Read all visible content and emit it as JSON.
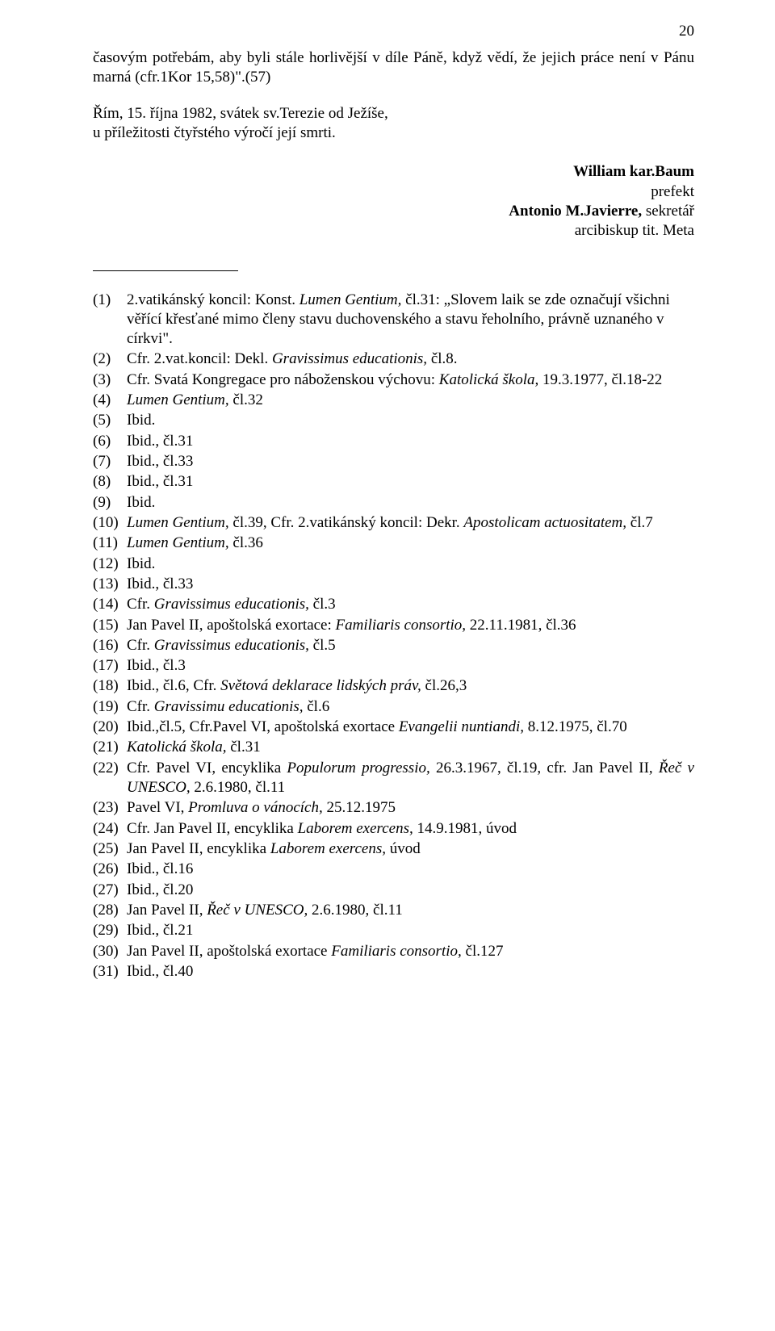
{
  "page_number": "20",
  "body": {
    "para1_a": "časovým potřebám, aby byli stále horlivější v díle Páně, když vědí, že jejich práce není v Pánu marná (cfr.1Kor 15,58)\".(57)",
    "para2_a": "Řím, 15. října 1982, svátek sv.Terezie od Ježíše,",
    "para2_b": "u příležitosti čtyřstého výročí její smrti."
  },
  "signatures": {
    "line1_name": "William kar.Baum",
    "line1_role": "prefekt",
    "line2_name": "Antonio M.Javierre,",
    "line2_role": " sekretář",
    "line3": "arcibiskup tit. Meta"
  },
  "notes": [
    {
      "n": "(1)",
      "pre": "2.vatikánský koncil: Konst. ",
      "it": "Lumen Gentium, ",
      "post": "čl.31: „Slovem laik se zde označují všichni věřící křesťané mimo členy stavu duchovenského a stavu řeholního, právně uznaného v církvi\"."
    },
    {
      "n": "(2)",
      "pre": "Cfr. 2.vat.koncil: Dekl. ",
      "it": "Gravissimus educationis,",
      "post": " čl.8."
    },
    {
      "n": "(3)",
      "pre": "Cfr. Svatá Kongregace pro náboženskou výchovu: ",
      "it": "Katolická škola,",
      "post": " 19.3.1977, čl.18-22"
    },
    {
      "n": "(4)",
      "pre": "",
      "it": "Lumen Gentium, ",
      "post": "čl.32"
    },
    {
      "n": "(5)",
      "pre": "Ibid.",
      "it": "",
      "post": ""
    },
    {
      "n": "(6)",
      "pre": "Ibid., čl.31",
      "it": "",
      "post": ""
    },
    {
      "n": "(7)",
      "pre": "Ibid., čl.33",
      "it": "",
      "post": ""
    },
    {
      "n": "(8)",
      "pre": "Ibid., čl.31",
      "it": "",
      "post": ""
    },
    {
      "n": "(9)",
      "pre": "Ibid.",
      "it": "",
      "post": ""
    },
    {
      "n": "(10)",
      "pre": "",
      "it": "Lumen Gentium, ",
      "post": "čl.39, Cfr. 2.vatikánský koncil: Dekr. ",
      "it2": "Apostolicam actuositatem, ",
      "post2": "čl.7"
    },
    {
      "n": "(11)",
      "pre": "",
      "it": "Lumen Gentium, ",
      "post": "čl.36"
    },
    {
      "n": "(12)",
      "pre": "Ibid.",
      "it": "",
      "post": ""
    },
    {
      "n": "(13)",
      "pre": "Ibid., čl.33",
      "it": "",
      "post": ""
    },
    {
      "n": "(14)",
      "pre": "Cfr. ",
      "it": "Gravissimus educationis, ",
      "post": "čl.3"
    },
    {
      "n": "(15)",
      "pre": "Jan Pavel II, apoštolská exortace: ",
      "it": "Familiaris consortio, ",
      "post": "22.11.1981, čl.36"
    },
    {
      "n": "(16)",
      "pre": "Cfr. ",
      "it": "Gravissimus educationis, ",
      "post": "čl.5"
    },
    {
      "n": "(17)",
      "pre": "Ibid., čl.3",
      "it": "",
      "post": ""
    },
    {
      "n": "(18)",
      "pre": "Ibid., čl.6, Cfr. ",
      "it": "Světová deklarace lidských práv, ",
      "post": "čl.26,3"
    },
    {
      "n": "(19)",
      "pre": "Cfr. ",
      "it": "Gravissimu educationis, ",
      "post": "čl.6"
    },
    {
      "n": "(20)",
      "pre": "Ibid.,čl.5, Cfr.Pavel VI, apoštolská exortace ",
      "it": "Evangelii nuntiandi, ",
      "post": "8.12.1975, čl.70"
    },
    {
      "n": "(21)",
      "pre": "",
      "it": "Katolická škola, ",
      "post": "čl.31"
    },
    {
      "n": "(22)",
      "pre": "Cfr. Pavel VI, encyklika ",
      "it": "Populorum progressio, ",
      "post": "26.3.1967, čl.19, cfr. Jan Pavel II, ",
      "it2": "Řeč v UNESCO, ",
      "post2": "2.6.1980, čl.11",
      "justify": true
    },
    {
      "n": "(23)",
      "pre": "Pavel VI, ",
      "it": "Promluva o vánocích, ",
      "post": "25.12.1975"
    },
    {
      "n": "(24)",
      "pre": "Cfr. Jan Pavel II, encyklika ",
      "it": "Laborem exercens, ",
      "post": "14.9.1981, úvod"
    },
    {
      "n": "(25)",
      "pre": "Jan Pavel II, encyklika ",
      "it": "Laborem exercens, ",
      "post": "úvod"
    },
    {
      "n": "(26)",
      "pre": "Ibid., čl.16",
      "it": "",
      "post": ""
    },
    {
      "n": "(27)",
      "pre": "Ibid., čl.20",
      "it": "",
      "post": ""
    },
    {
      "n": "(28)",
      "pre": "Jan Pavel II, ",
      "it": "Řeč v UNESCO, ",
      "post": "2.6.1980, čl.11"
    },
    {
      "n": "(29)",
      "pre": "Ibid., čl.21",
      "it": "",
      "post": ""
    },
    {
      "n": "(30)",
      "pre": "Jan Pavel II, apoštolská exortace ",
      "it": "Familiaris consortio, ",
      "post": "čl.127"
    },
    {
      "n": "(31)",
      "pre": "Ibid., čl.40",
      "it": "",
      "post": ""
    }
  ]
}
